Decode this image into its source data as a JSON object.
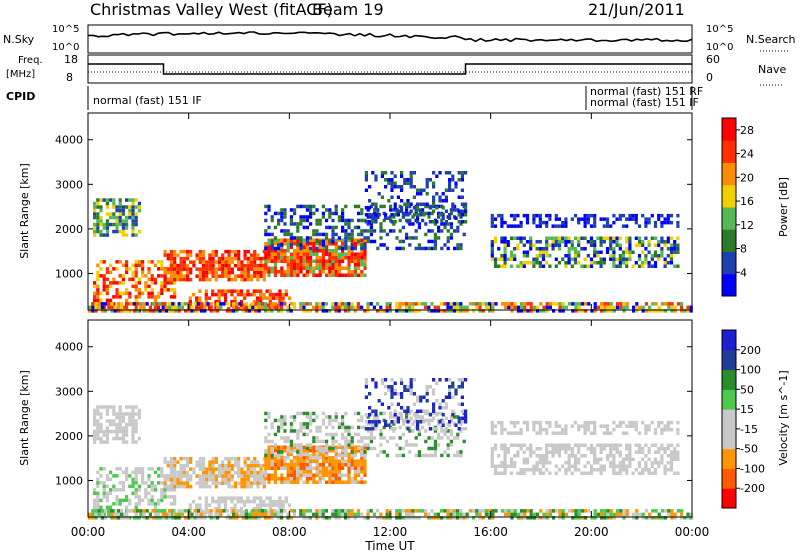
{
  "header": {
    "title": "Christmas Valley West (fitACF)",
    "beam": "Beam 19",
    "date": "21/Jun/2011"
  },
  "top_panels": {
    "nsky_label": "N.Sky",
    "nsky_ticks": [
      "10^5",
      "10^0"
    ],
    "nsearch_label": "N.Search",
    "nsearch_ticks": [
      "10^5",
      "10^0"
    ],
    "freq_label": "Freq.",
    "freq_unit": "[MHz]",
    "freq_ticks": [
      "18",
      "8"
    ],
    "nave_label": "Nave",
    "nave_ticks": [
      "60",
      "0"
    ],
    "cpid_label": "CPID",
    "cpid_left": "normal (fast) 151 IF",
    "cpid_right_1": "normal (fast) 151 RF",
    "cpid_right_2": "normal (fast) 151 IF"
  },
  "colors": {
    "power": [
      "#0000ff",
      "#1e3fb0",
      "#2a7a2a",
      "#55b855",
      "#f2d000",
      "#ff8c00",
      "#ff3000",
      "#ff0000"
    ],
    "velocity": [
      "#ff0000",
      "#ff5a00",
      "#ff9600",
      "#c8c8c8",
      "#c8c8c8",
      "#4cc84c",
      "#2a8c2a",
      "#1e3c9c",
      "#1e1ed2"
    ]
  },
  "chart_data": [
    {
      "type": "heatmap",
      "name": "power",
      "xlabel": "Time UT",
      "ylabel": "Slant Range [km]",
      "x_ticks": [
        "00:00",
        "04:00",
        "08:00",
        "12:00",
        "16:00",
        "20:00",
        "00:00"
      ],
      "xlim": [
        "00:00",
        "24:00"
      ],
      "y_ticks": [
        1000,
        2000,
        3000,
        4000
      ],
      "ylim": [
        180,
        4600
      ],
      "colorbar_label": "Power [dB]",
      "colorbar_ticks": [
        4,
        8,
        12,
        16,
        20,
        24,
        28
      ],
      "colorbar_range": [
        0,
        30
      ]
    },
    {
      "type": "heatmap",
      "name": "velocity",
      "xlabel": "Time UT",
      "ylabel": "Slant Range [km]",
      "x_ticks": [
        "00:00",
        "04:00",
        "08:00",
        "12:00",
        "16:00",
        "20:00",
        "00:00"
      ],
      "xlim": [
        "00:00",
        "24:00"
      ],
      "y_ticks": [
        1000,
        2000,
        3000,
        4000
      ],
      "ylim": [
        180,
        4600
      ],
      "colorbar_label": "Velocity [m s^-1]",
      "colorbar_ticks": [
        200,
        100,
        50,
        15,
        -15,
        -50,
        -100,
        -200
      ],
      "colorbar_range": [
        -250,
        250
      ]
    }
  ]
}
